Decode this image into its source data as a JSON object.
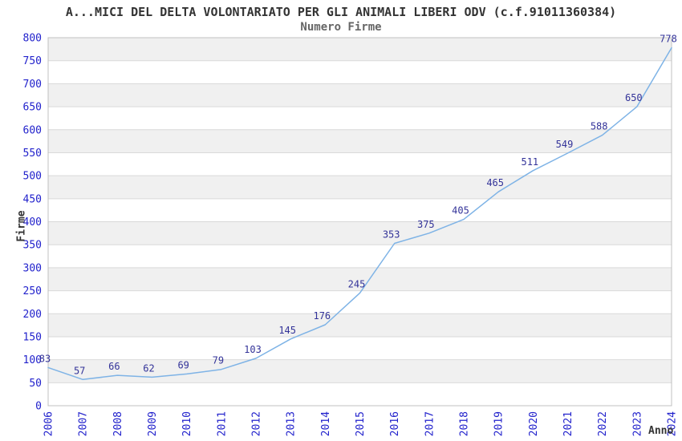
{
  "header": {
    "title": "A...MICI DEL DELTA VOLONTARIATO PER GLI ANIMALI LIBERI ODV (c.f.91011360384)",
    "subtitle": "Numero Firme"
  },
  "chart_data": {
    "type": "line",
    "title": "A...MICI DEL DELTA VOLONTARIATO PER GLI ANIMALI LIBERI ODV (c.f.91011360384)",
    "subtitle": "Numero Firme",
    "xlabel": "Anno",
    "ylabel": "Firme",
    "x": [
      2006,
      2007,
      2008,
      2009,
      2010,
      2011,
      2012,
      2013,
      2014,
      2015,
      2016,
      2017,
      2018,
      2019,
      2020,
      2021,
      2022,
      2023,
      2024
    ],
    "series": [
      {
        "name": "Numero Firme",
        "values": [
          83,
          57,
          66,
          62,
          69,
          79,
          103,
          145,
          176,
          245,
          353,
          375,
          405,
          465,
          511,
          549,
          588,
          650,
          778
        ]
      }
    ],
    "ylim": [
      0,
      800
    ],
    "ytick_step": 50,
    "grid": true,
    "banded_background": true,
    "legend_position": "none",
    "data_labels_shown": true,
    "colors": {
      "line": "#7eb3e6",
      "tick_label": "#2222cc",
      "point_label": "#333399",
      "band": "#f0f0f0",
      "gridline": "#d9d9d9",
      "plot_border": "#c0c0c0",
      "title": "#333333",
      "subtitle": "#666666",
      "axis_title": "#333333",
      "background": "#ffffff"
    }
  }
}
